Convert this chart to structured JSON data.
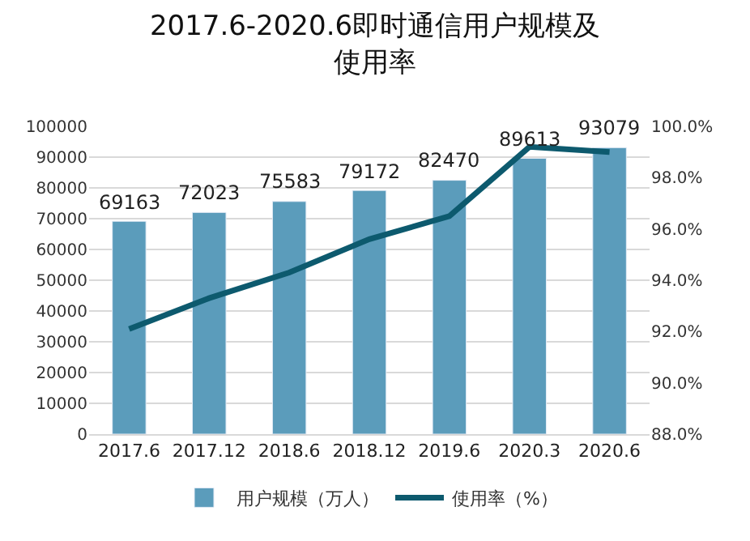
{
  "chart_data": {
    "type": "bar",
    "title": "2017.6-2020.6即时通信用户规模及使用率",
    "categories": [
      "2017.6",
      "2017.12",
      "2018.6",
      "2018.12",
      "2019.6",
      "2020.3",
      "2020.6"
    ],
    "series": [
      {
        "name": "用户规模（万人）",
        "color": "#5b9cbb",
        "values": [
          69163,
          72023,
          75583,
          79172,
          82470,
          89613,
          93079
        ],
        "data_labels": true
      },
      {
        "name": "使用率（%）",
        "type": "line",
        "axis": "y2",
        "color": "#0d5a6e",
        "marker": "none",
        "line_style": "solid",
        "values": [
          92.1,
          93.3,
          94.3,
          95.6,
          96.5,
          99.2,
          99.0
        ]
      }
    ],
    "ylim": [
      0,
      100000
    ],
    "yticks": [
      0,
      10000,
      20000,
      30000,
      40000,
      50000,
      60000,
      70000,
      80000,
      90000,
      100000
    ],
    "y2lim": [
      88,
      100
    ],
    "y2ticks": [
      {
        "value": 88,
        "label": "88.0%"
      },
      {
        "value": 90,
        "label": "90.0%"
      },
      {
        "value": 92,
        "label": "92.0%"
      },
      {
        "value": 94,
        "label": "94.0%"
      },
      {
        "value": 96,
        "label": "96.0%"
      },
      {
        "value": 98,
        "label": "98.0%"
      },
      {
        "value": 100,
        "label": "100.0%"
      }
    ],
    "grid": "y",
    "legend": "bottom"
  }
}
